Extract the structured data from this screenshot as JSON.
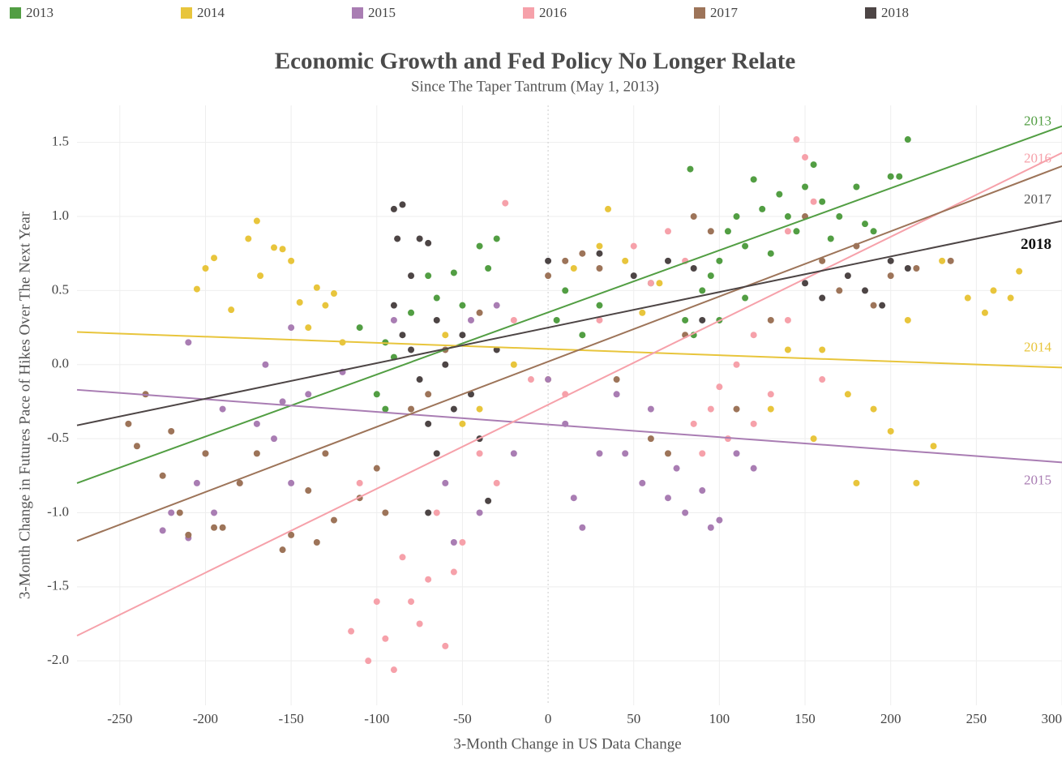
{
  "chart_data": {
    "type": "scatter",
    "title": "Economic Growth and Fed Policy No Longer Relate",
    "subtitle": "Since The Taper Tantrum (May 1, 2013)",
    "x_label": "3-Month Change in US Data Change",
    "y_label": "3-Month Change in Futures Pace of Hikes Over The Next Year",
    "xlim": [
      -275,
      300
    ],
    "ylim": [
      -2.3,
      1.75
    ],
    "xticks": [
      -250,
      -200,
      -150,
      -100,
      -50,
      0,
      50,
      100,
      150,
      200,
      250,
      300
    ],
    "yticks": [
      1.5,
      {
        "value": 1,
        "label": "1.0"
      },
      0.5,
      {
        "value": 0,
        "label": "0.0"
      },
      -0.5,
      {
        "value": -1,
        "label": "-1.0"
      },
      -1.5,
      {
        "value": -2,
        "label": "-2.0"
      }
    ],
    "grid": true,
    "legend": "top",
    "series": [
      {
        "name": "2013",
        "color": "#529e43",
        "x": [
          -110,
          -100,
          -95,
          -90,
          -80,
          -70,
          -65,
          -55,
          -50,
          -40,
          -30,
          -35,
          -95,
          5,
          10,
          20,
          30,
          60,
          80,
          83,
          85,
          90,
          100,
          105,
          110,
          115,
          120,
          125,
          130,
          135,
          140,
          150,
          155,
          160,
          170,
          180,
          185,
          190,
          200,
          205,
          210,
          100,
          95,
          115,
          145,
          165
        ],
        "values": [
          0.25,
          -0.2,
          -0.3,
          0.05,
          0.35,
          0.6,
          0.45,
          0.62,
          0.4,
          0.8,
          0.85,
          0.65,
          0.15,
          0.3,
          0.5,
          0.2,
          0.4,
          0.55,
          0.3,
          1.32,
          0.2,
          0.5,
          0.7,
          0.9,
          1.0,
          0.8,
          1.25,
          1.05,
          0.75,
          1.15,
          1.0,
          1.2,
          1.35,
          1.1,
          1.0,
          1.2,
          0.95,
          0.9,
          1.27,
          1.27,
          1.52,
          0.3,
          0.6,
          0.45,
          0.9,
          0.85
        ],
        "trend": {
          "x": [
            -275,
            300
          ],
          "values": [
            -0.8,
            1.61
          ]
        }
      },
      {
        "name": "2014",
        "color": "#e8c53c",
        "x": [
          -205,
          -200,
          -195,
          -185,
          -175,
          -170,
          -168,
          -160,
          -155,
          -150,
          -145,
          -140,
          -135,
          -130,
          -125,
          -120,
          -60,
          -50,
          -40,
          -20,
          0,
          15,
          30,
          35,
          45,
          55,
          65,
          130,
          140,
          155,
          160,
          175,
          180,
          190,
          200,
          210,
          215,
          225,
          230,
          245,
          255,
          260,
          275,
          270
        ],
        "values": [
          0.51,
          0.65,
          0.72,
          0.37,
          0.85,
          0.97,
          0.6,
          0.79,
          0.78,
          0.7,
          0.42,
          0.25,
          0.52,
          0.4,
          0.48,
          0.15,
          0.2,
          -0.4,
          -0.3,
          0,
          -0.1,
          0.65,
          0.8,
          1.05,
          0.7,
          0.35,
          0.55,
          -0.3,
          0.1,
          -0.5,
          0.1,
          -0.2,
          -0.8,
          -0.3,
          -0.45,
          0.3,
          -0.8,
          -0.55,
          0.7,
          0.45,
          0.35,
          0.5,
          0.63,
          0.45
        ],
        "trend": {
          "x": [
            -275,
            300
          ],
          "values": [
            0.22,
            -0.02
          ]
        }
      },
      {
        "name": "2015",
        "color": "#a97db3",
        "x": [
          -225,
          -220,
          -210,
          -205,
          -200,
          -195,
          -190,
          -180,
          -170,
          -165,
          -160,
          -155,
          -150,
          -150,
          -140,
          -120,
          -90,
          -60,
          -55,
          -45,
          -40,
          -30,
          -20,
          0,
          10,
          15,
          20,
          30,
          40,
          45,
          55,
          60,
          70,
          75,
          80,
          90,
          95,
          100,
          110,
          120,
          -210
        ],
        "values": [
          -1.12,
          -1,
          -1.17,
          -0.8,
          -0.6,
          -1,
          -0.3,
          -0.8,
          -0.4,
          0,
          -0.5,
          -0.25,
          -0.8,
          0.25,
          -0.2,
          -0.05,
          0.3,
          -0.8,
          -1.2,
          0.3,
          -1,
          0.4,
          -0.6,
          -0.1,
          -0.4,
          -0.9,
          -1.1,
          -0.6,
          -0.2,
          -0.6,
          -0.8,
          -0.3,
          -0.9,
          -0.7,
          -1,
          -0.85,
          -1.1,
          -1.05,
          -0.6,
          -0.7,
          0.15
        ],
        "trend": {
          "x": [
            -275,
            300
          ],
          "values": [
            -0.17,
            -0.66
          ]
        }
      },
      {
        "name": "2016",
        "color": "#f6a1aa",
        "x": [
          -115,
          -105,
          -100,
          -95,
          -90,
          -85,
          -80,
          -75,
          -70,
          -65,
          -60,
          -55,
          -50,
          -40,
          -30,
          -25,
          -20,
          -10,
          10,
          30,
          50,
          60,
          70,
          80,
          85,
          90,
          95,
          105,
          110,
          120,
          130,
          140,
          145,
          150,
          155,
          140,
          160,
          120,
          100,
          -110
        ],
        "values": [
          -1.8,
          -2,
          -1.6,
          -1.85,
          -2.06,
          -1.3,
          -1.6,
          -1.75,
          -1.45,
          -1,
          -1.9,
          -1.4,
          -1.2,
          -0.6,
          -0.8,
          1.09,
          0.3,
          -0.1,
          -0.2,
          0.3,
          0.8,
          0.55,
          0.9,
          0.7,
          -0.4,
          -0.6,
          -0.3,
          -0.5,
          0,
          -0.4,
          -0.2,
          0.3,
          1.52,
          1.4,
          1.1,
          0.9,
          -0.1,
          0.2,
          -0.15,
          -0.8
        ],
        "trend": {
          "x": [
            -275,
            300
          ],
          "values": [
            -1.83,
            1.43
          ]
        }
      },
      {
        "name": "2017",
        "color": "#9d7459",
        "x": [
          -245,
          -240,
          -235,
          -225,
          -220,
          -215,
          -210,
          -200,
          -195,
          -190,
          -180,
          -170,
          -155,
          -150,
          -140,
          -135,
          -130,
          -125,
          -110,
          -100,
          -95,
          -80,
          -70,
          -60,
          -40,
          0,
          10,
          20,
          30,
          40,
          60,
          70,
          80,
          85,
          95,
          110,
          130,
          150,
          160,
          170,
          180,
          190,
          200,
          215,
          235
        ],
        "values": [
          -0.4,
          -0.55,
          -0.2,
          -0.75,
          -0.45,
          -1,
          -1.15,
          -0.6,
          -1.1,
          -1.1,
          -0.8,
          -0.6,
          -1.25,
          -1.15,
          -0.85,
          -1.2,
          -0.6,
          -1.05,
          -0.9,
          -0.7,
          -1,
          -0.3,
          -0.2,
          0.1,
          0.35,
          0.6,
          0.7,
          0.75,
          0.65,
          -0.1,
          -0.5,
          -0.6,
          0.2,
          1,
          0.9,
          -0.3,
          0.3,
          1,
          0.7,
          0.5,
          0.8,
          0.4,
          0.6,
          0.65,
          0.7
        ],
        "trend": {
          "x": [
            -275,
            300
          ],
          "values": [
            -1.19,
            1.34
          ]
        }
      },
      {
        "name": "2018",
        "color": "#4d4545",
        "x": [
          -90,
          -88,
          -85,
          -80,
          -75,
          -70,
          -90,
          -85,
          -80,
          -75,
          -70,
          -65,
          -60,
          -55,
          -50,
          -45,
          -40,
          -35,
          -30,
          0,
          30,
          50,
          70,
          85,
          90,
          150,
          160,
          175,
          185,
          195,
          200,
          210,
          -70,
          -65
        ],
        "values": [
          1.05,
          0.85,
          1.08,
          0.6,
          0.85,
          0.82,
          0.4,
          0.2,
          0.1,
          -0.1,
          -0.4,
          0.3,
          0,
          -0.3,
          0.2,
          -0.2,
          -0.5,
          -0.92,
          0.1,
          0.7,
          0.75,
          0.6,
          0.7,
          0.65,
          0.3,
          0.55,
          0.45,
          0.6,
          0.5,
          0.4,
          0.7,
          0.65,
          -1,
          -0.6
        ],
        "trend": {
          "x": [
            -275,
            300
          ],
          "values": [
            -0.41,
            0.97
          ]
        }
      }
    ]
  }
}
